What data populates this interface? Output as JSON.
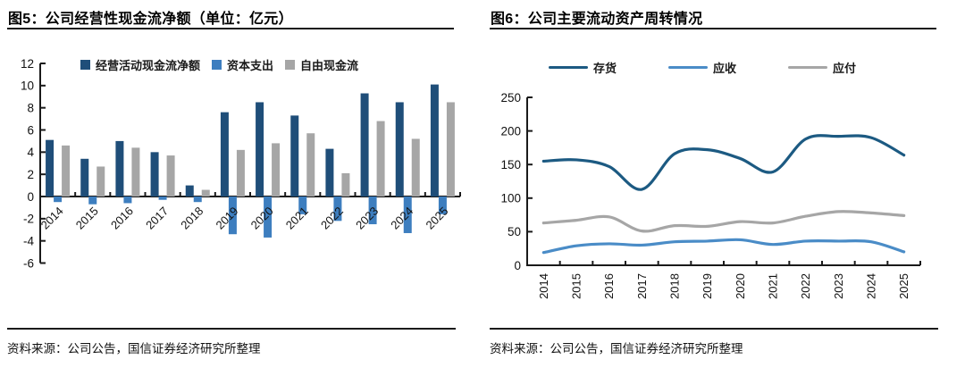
{
  "fig5": {
    "title": "图5：公司经营性现金流净额（单位：亿元）",
    "source": "资料来源：公司公告，国信证券经济研究所整理"
  },
  "fig6": {
    "title": "图6：公司主要流动资产周转情况",
    "source": "资料来源：公司公告，国信证券经济研究所整理"
  },
  "chart_data": [
    {
      "type": "bar",
      "title": "公司经营性现金流净额（单位：亿元）",
      "unit": "亿元",
      "categories": [
        "2014",
        "2015",
        "2016",
        "2017",
        "2018",
        "2019",
        "2020",
        "2021",
        "2022",
        "2023",
        "2024",
        "2025"
      ],
      "series": [
        {
          "key": "operating-cashflow",
          "name": "经营活动现金流净额",
          "color": "#1f4e79",
          "values": [
            5.1,
            3.4,
            5.0,
            4.0,
            1.0,
            7.6,
            8.5,
            7.3,
            4.3,
            9.3,
            8.5,
            10.1
          ]
        },
        {
          "key": "capex",
          "name": "资本支出",
          "color": "#3d7ebf",
          "values": [
            -0.5,
            -0.7,
            -0.6,
            -0.3,
            -0.5,
            -3.4,
            -3.7,
            -1.6,
            -2.2,
            -2.5,
            -3.3,
            -1.6
          ]
        },
        {
          "key": "free-cashflow",
          "name": "自由现金流",
          "color": "#a6a6a6",
          "values": [
            4.6,
            2.7,
            4.4,
            3.7,
            0.6,
            4.2,
            4.8,
            5.7,
            2.1,
            6.8,
            5.2,
            8.5
          ]
        }
      ],
      "ylim": [
        -6,
        12
      ],
      "ytick_step": 2,
      "legend_position": "top",
      "grid": false
    },
    {
      "type": "line",
      "title": "公司主要流动资产周转情况",
      "categories": [
        "2014",
        "2015",
        "2016",
        "2017",
        "2018",
        "2019",
        "2020",
        "2021",
        "2022",
        "2023",
        "2024",
        "2025"
      ],
      "series": [
        {
          "key": "inventory",
          "name": "存货",
          "color": "#1c5a82",
          "values": [
            155,
            157,
            147,
            113,
            166,
            172,
            159,
            139,
            188,
            192,
            190,
            164
          ]
        },
        {
          "key": "receivables",
          "name": "应收",
          "color": "#4a8cc7",
          "values": [
            19,
            29,
            32,
            30,
            35,
            36,
            38,
            31,
            36,
            36,
            35,
            20
          ]
        },
        {
          "key": "payables",
          "name": "应付",
          "color": "#a6a6a6",
          "values": [
            63,
            67,
            72,
            51,
            59,
            58,
            65,
            63,
            73,
            80,
            78,
            74
          ]
        }
      ],
      "ylim": [
        0,
        250
      ],
      "ytick_step": 50,
      "legend_position": "top",
      "grid": false
    }
  ]
}
